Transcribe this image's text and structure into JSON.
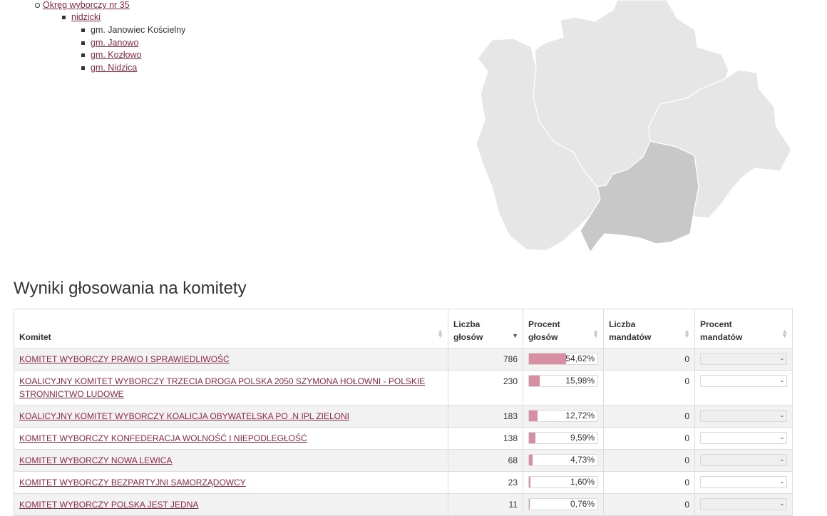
{
  "nav": {
    "district": "Okręg wyborczy nr 35",
    "county": "nidzicki",
    "communes": [
      {
        "label": "gm. Janowiec Kościelny",
        "link": false
      },
      {
        "label": "gm. Janowo",
        "link": true
      },
      {
        "label": "gm. Kozłowo",
        "link": true
      },
      {
        "label": "gm. Nidzica",
        "link": true
      }
    ]
  },
  "map": {
    "base_color": "#e6e6e6",
    "highlight_color": "#c8c8c8",
    "border_color": "#ffffff"
  },
  "section_title": "Wyniki głosowania na komitety",
  "table": {
    "headers": {
      "committee": "Komitet",
      "votes": [
        "Liczba",
        "głosów"
      ],
      "vote_pct": [
        "Procent",
        "głosów"
      ],
      "seats": [
        "Liczba",
        "mandatów"
      ],
      "seat_pct": [
        "Procent",
        "mandatów"
      ]
    },
    "bar_color": "#d68fa3",
    "rows": [
      {
        "committee": "KOMITET WYBORCZY PRAWO I SPRAWIEDLIWOŚĆ",
        "votes": "786",
        "vote_pct": "54,62%",
        "vote_fraction": 0.5462,
        "seats": "0",
        "seat_pct": "-"
      },
      {
        "committee": "KOALICYJNY KOMITET WYBORCZY TRZECIA DROGA POLSKA 2050 SZYMONA HOŁOWNI - POLSKIE STRONNICTWO LUDOWE",
        "votes": "230",
        "vote_pct": "15,98%",
        "vote_fraction": 0.1598,
        "seats": "0",
        "seat_pct": "-"
      },
      {
        "committee": "KOALICYJNY KOMITET WYBORCZY KOALICJA OBYWATELSKA PO .N IPL ZIELONI",
        "votes": "183",
        "vote_pct": "12,72%",
        "vote_fraction": 0.1272,
        "seats": "0",
        "seat_pct": "-"
      },
      {
        "committee": "KOMITET WYBORCZY KONFEDERACJA WOLNOŚĆ I NIEPODLEGŁOŚĆ",
        "votes": "138",
        "vote_pct": "9,59%",
        "vote_fraction": 0.0959,
        "seats": "0",
        "seat_pct": "-"
      },
      {
        "committee": "KOMITET WYBORCZY NOWA LEWICA",
        "votes": "68",
        "vote_pct": "4,73%",
        "vote_fraction": 0.0473,
        "seats": "0",
        "seat_pct": "-"
      },
      {
        "committee": "KOMITET WYBORCZY BEZPARTYJNI SAMORZĄDOWCY",
        "votes": "23",
        "vote_pct": "1,60%",
        "vote_fraction": 0.016,
        "seats": "0",
        "seat_pct": "-"
      },
      {
        "committee": "KOMITET WYBORCZY POLSKA JEST JEDNA",
        "votes": "11",
        "vote_pct": "0,76%",
        "vote_fraction": 0.0076,
        "seats": "0",
        "seat_pct": "-"
      }
    ]
  }
}
